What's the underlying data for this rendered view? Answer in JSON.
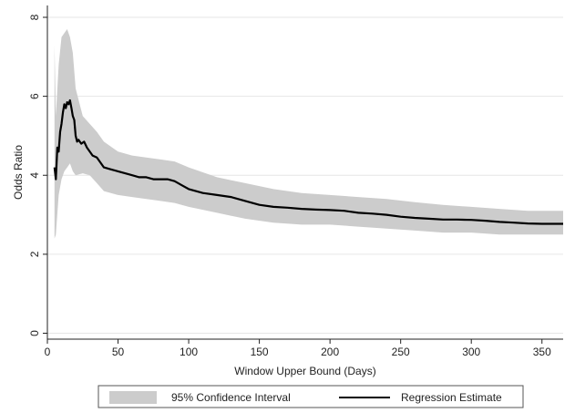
{
  "chart_data": {
    "type": "line",
    "xlabel": "Window Upper Bound (Days)",
    "ylabel": "Odds Ratio",
    "xlim": [
      0,
      365
    ],
    "ylim": [
      0,
      8
    ],
    "x_ticks": [
      0,
      50,
      100,
      150,
      200,
      250,
      300,
      350
    ],
    "y_ticks": [
      0,
      2,
      4,
      6,
      8
    ],
    "grid": "horizontal",
    "legend_position": "bottom",
    "series": [
      {
        "name": "Regression Estimate",
        "color": "#000000",
        "points": [
          [
            5,
            4.2
          ],
          [
            6,
            3.9
          ],
          [
            7,
            4.7
          ],
          [
            8,
            4.6
          ],
          [
            9,
            5.1
          ],
          [
            10,
            5.3
          ],
          [
            11,
            5.6
          ],
          [
            12,
            5.8
          ],
          [
            13,
            5.7
          ],
          [
            14,
            5.85
          ],
          [
            15,
            5.8
          ],
          [
            16,
            5.9
          ],
          [
            17,
            5.7
          ],
          [
            18,
            5.5
          ],
          [
            19,
            5.4
          ],
          [
            20,
            5.0
          ],
          [
            21,
            4.85
          ],
          [
            22,
            4.9
          ],
          [
            24,
            4.8
          ],
          [
            26,
            4.85
          ],
          [
            28,
            4.7
          ],
          [
            30,
            4.6
          ],
          [
            32,
            4.5
          ],
          [
            35,
            4.45
          ],
          [
            38,
            4.3
          ],
          [
            40,
            4.2
          ],
          [
            45,
            4.15
          ],
          [
            50,
            4.1
          ],
          [
            55,
            4.05
          ],
          [
            60,
            4.0
          ],
          [
            65,
            3.95
          ],
          [
            70,
            3.95
          ],
          [
            75,
            3.9
          ],
          [
            80,
            3.9
          ],
          [
            85,
            3.9
          ],
          [
            90,
            3.85
          ],
          [
            95,
            3.75
          ],
          [
            100,
            3.65
          ],
          [
            110,
            3.55
          ],
          [
            120,
            3.5
          ],
          [
            130,
            3.45
          ],
          [
            140,
            3.35
          ],
          [
            150,
            3.25
          ],
          [
            160,
            3.2
          ],
          [
            170,
            3.18
          ],
          [
            180,
            3.15
          ],
          [
            190,
            3.13
          ],
          [
            200,
            3.12
          ],
          [
            210,
            3.1
          ],
          [
            220,
            3.05
          ],
          [
            230,
            3.03
          ],
          [
            240,
            3.0
          ],
          [
            250,
            2.95
          ],
          [
            260,
            2.92
          ],
          [
            270,
            2.9
          ],
          [
            280,
            2.88
          ],
          [
            290,
            2.88
          ],
          [
            300,
            2.87
          ],
          [
            310,
            2.85
          ],
          [
            320,
            2.82
          ],
          [
            330,
            2.8
          ],
          [
            340,
            2.78
          ],
          [
            350,
            2.77
          ],
          [
            365,
            2.77
          ]
        ]
      },
      {
        "name": "95% Confidence Interval",
        "color": "#cccccc",
        "x": [
          5,
          6,
          8,
          10,
          12,
          14,
          16,
          18,
          20,
          25,
          30,
          35,
          40,
          50,
          60,
          70,
          80,
          90,
          100,
          120,
          140,
          160,
          180,
          200,
          220,
          240,
          260,
          280,
          300,
          320,
          340,
          365
        ],
        "upper": [
          7.3,
          5.5,
          6.8,
          7.5,
          7.6,
          7.7,
          7.5,
          7.1,
          6.2,
          5.5,
          5.3,
          5.1,
          4.85,
          4.6,
          4.5,
          4.45,
          4.4,
          4.35,
          4.2,
          3.95,
          3.8,
          3.65,
          3.55,
          3.5,
          3.45,
          3.4,
          3.32,
          3.25,
          3.2,
          3.15,
          3.1,
          3.1
        ],
        "lower": [
          2.4,
          2.5,
          3.5,
          3.9,
          4.1,
          4.2,
          4.3,
          4.1,
          4.0,
          4.05,
          4.0,
          3.8,
          3.6,
          3.5,
          3.45,
          3.4,
          3.35,
          3.3,
          3.2,
          3.05,
          2.9,
          2.8,
          2.75,
          2.75,
          2.7,
          2.65,
          2.6,
          2.55,
          2.55,
          2.5,
          2.5,
          2.5
        ]
      }
    ],
    "legend": {
      "ci_label": "95% Confidence Interval",
      "estimate_label": "Regression Estimate"
    }
  }
}
